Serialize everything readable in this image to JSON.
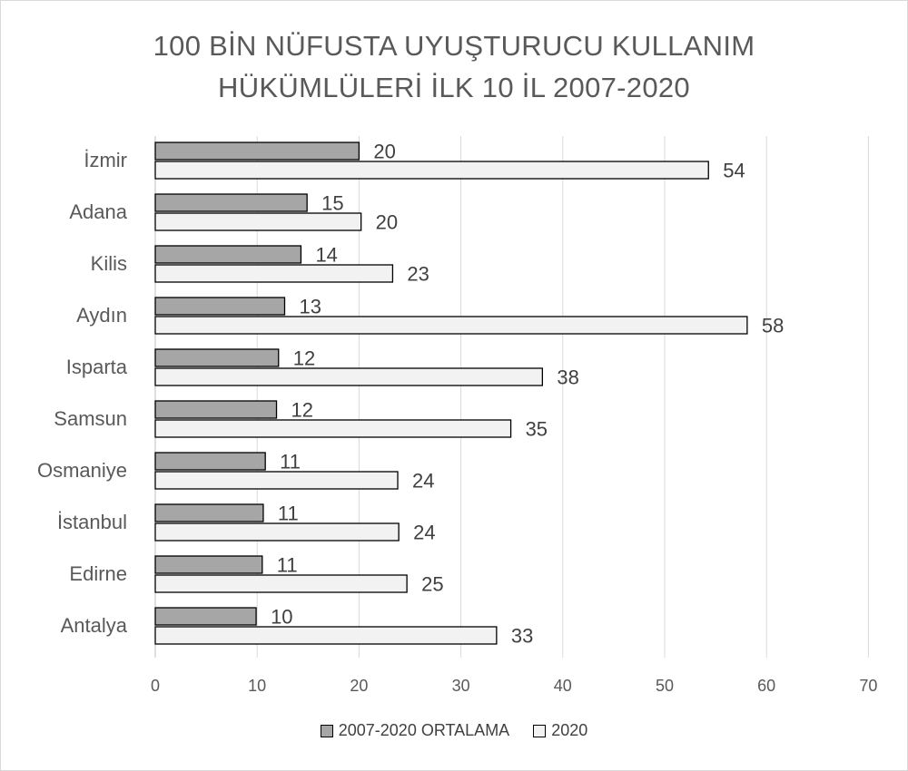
{
  "chart_data": {
    "type": "bar",
    "orientation": "horizontal",
    "title_lines": [
      "100 BİN NÜFUSTA UYUŞTURUCU KULLANIM",
      "HÜKÜMLÜLERİ İLK 10 İL 2007-2020"
    ],
    "categories": [
      "İzmir",
      "Adana",
      "Kilis",
      "Aydın",
      "Isparta",
      "Samsun",
      "Osmaniye",
      "İstanbul",
      "Edirne",
      "Antalya"
    ],
    "series": [
      {
        "name": "2007-2020 ORTALAMA",
        "color": "#a6a6a6",
        "values": [
          20,
          15,
          14,
          13,
          12,
          12,
          11,
          11,
          11,
          10
        ],
        "plot_values": [
          20.0,
          14.9,
          14.3,
          12.7,
          12.1,
          11.9,
          10.8,
          10.6,
          10.5,
          9.9
        ]
      },
      {
        "name": "2020",
        "color": "#f2f2f2",
        "values": [
          54,
          20,
          23,
          58,
          38,
          35,
          24,
          24,
          25,
          33
        ],
        "plot_values": [
          54.3,
          20.2,
          23.3,
          58.1,
          38.0,
          34.9,
          23.8,
          23.9,
          24.7,
          33.5
        ]
      }
    ],
    "x_ticks": [
      "0",
      "10",
      "20",
      "30",
      "40",
      "50",
      "60",
      "70"
    ],
    "xlim": [
      0,
      70
    ],
    "grid": "vertical",
    "legend_position": "bottom"
  }
}
